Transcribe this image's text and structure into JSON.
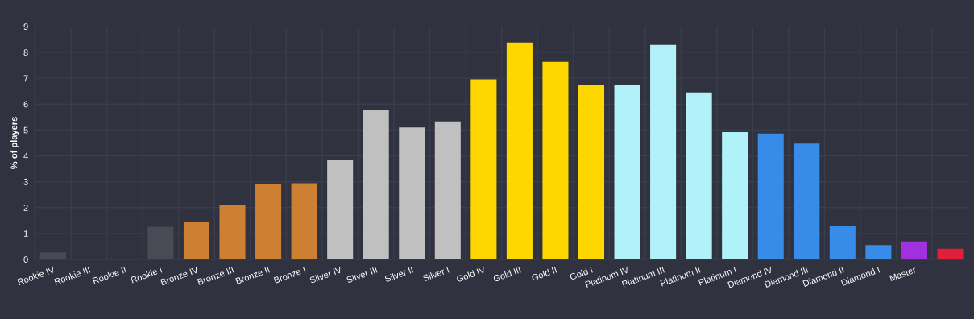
{
  "chart_data": {
    "type": "bar",
    "ylabel": "% of players",
    "categories": [
      "Rookie IV",
      "Rookie III",
      "Rookie II",
      "Rookie I",
      "Bronze IV",
      "Bronze III",
      "Bronze II",
      "Bronze I",
      "Silver IV",
      "Silver III",
      "Silver II",
      "Silver I",
      "Gold IV",
      "Gold III",
      "Gold II",
      "Gold I",
      "Platinum IV",
      "Platinum III",
      "Platinum II",
      "Platinum I",
      "Diamond IV",
      "Diamond III",
      "Diamond II",
      "Diamond I",
      "Master",
      null
    ],
    "values": [
      0.27,
      0,
      0,
      1.26,
      1.44,
      2.1,
      2.9,
      2.94,
      3.85,
      5.79,
      5.1,
      5.33,
      6.96,
      8.38,
      7.63,
      6.73,
      6.72,
      8.29,
      6.45,
      4.92,
      4.86,
      4.47,
      1.29,
      0.55,
      0.69,
      0.41
    ],
    "colors": [
      "#4a4a55",
      "#4a4a55",
      "#4a4a55",
      "#4a4a55",
      "#cd7f32",
      "#cd7f32",
      "#cd7f32",
      "#cd7f32",
      "#c0c0c0",
      "#c0c0c0",
      "#c0c0c0",
      "#c0c0c0",
      "#ffd700",
      "#ffd700",
      "#ffd700",
      "#ffd700",
      "#b0f2f7",
      "#b0f2f7",
      "#b0f2f7",
      "#b0f2f7",
      "#368ce7",
      "#368ce7",
      "#368ce7",
      "#368ce7",
      "#a030e0",
      "#e0203a"
    ],
    "ylim": [
      0,
      9
    ],
    "yticks": [
      0,
      1,
      2,
      3,
      4,
      5,
      6,
      7,
      8,
      9
    ],
    "grid": true
  }
}
